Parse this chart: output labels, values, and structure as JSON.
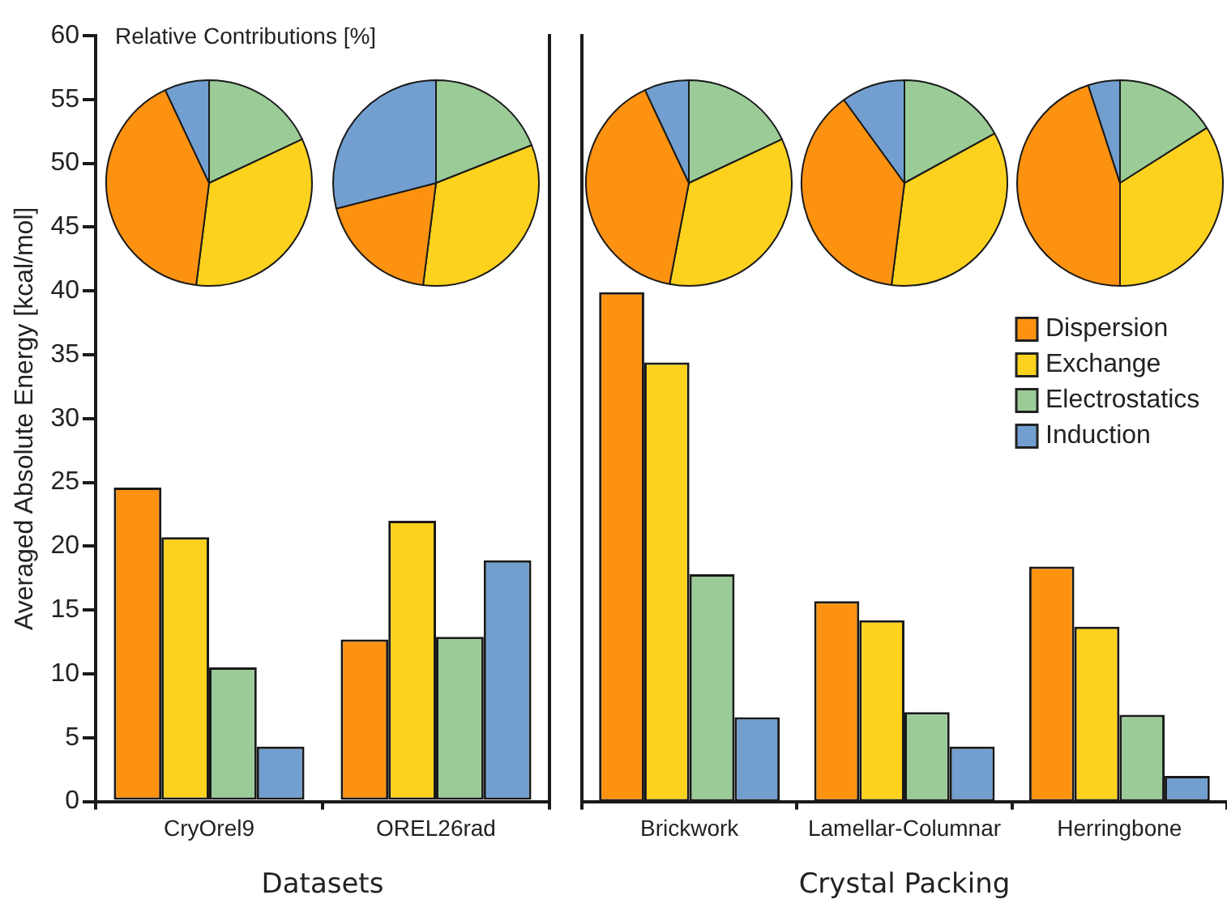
{
  "chart_data": [
    {
      "type": "bar",
      "xlabel": "Datasets",
      "ylabel": "Averaged Absolute Energy [kcal/mol]",
      "categories": [
        "CryOrel9",
        "OREL26rad"
      ],
      "ylim": [
        0,
        60
      ],
      "yticks": [
        0,
        5,
        10,
        15,
        20,
        25,
        30,
        35,
        40,
        45,
        50,
        55,
        60
      ],
      "grid": false,
      "legend": false,
      "annotations": [
        "Relative Contributions [%]"
      ],
      "series": [
        {
          "color": "#fd9210",
          "values": [
            24.6,
            12.7
          ]
        },
        {
          "color": "#fdd21e",
          "values": [
            20.7,
            22.0
          ]
        },
        {
          "color": "#9bcc98",
          "values": [
            10.5,
            12.9
          ]
        },
        {
          "color": "#729fcf",
          "values": [
            4.3,
            18.9
          ]
        }
      ]
    },
    {
      "type": "bar",
      "xlabel": "Crystal Packing",
      "categories": [
        "Brickwork",
        "Lamellar-Columnar",
        "Herringbone"
      ],
      "ylim": [
        0,
        60
      ],
      "yticks": [
        0,
        5,
        10,
        15,
        20,
        25,
        30,
        35,
        40,
        45,
        50,
        55,
        60
      ],
      "tick_labels": "x",
      "grid": false,
      "legend": "right",
      "series": [
        {
          "name": "Dispersion",
          "color": "#fd9210",
          "values": [
            39.9,
            15.7,
            18.4
          ]
        },
        {
          "name": "Exchange",
          "color": "#fdd21e",
          "values": [
            34.4,
            14.2,
            13.7
          ]
        },
        {
          "name": "Electrostatics",
          "color": "#9bcc98",
          "values": [
            17.8,
            7.0,
            6.8
          ]
        },
        {
          "name": "Induction",
          "color": "#729fcf",
          "values": [
            6.6,
            4.3,
            2.0
          ]
        }
      ]
    },
    {
      "type": "pie",
      "categories": [
        null,
        null,
        null,
        null
      ],
      "values": [
        18,
        34,
        41,
        7
      ],
      "colors": [
        "#9bcc98",
        "#fdd21e",
        "#fd9210",
        "#729fcf"
      ]
    },
    {
      "type": "pie",
      "categories": [
        null,
        null,
        null,
        null
      ],
      "values": [
        19,
        33,
        19,
        29
      ],
      "colors": [
        "#9bcc98",
        "#fdd21e",
        "#fd9210",
        "#729fcf"
      ]
    },
    {
      "type": "pie",
      "categories": [
        null,
        null,
        null,
        null
      ],
      "values": [
        18,
        35,
        40,
        7
      ],
      "colors": [
        "#9bcc98",
        "#fdd21e",
        "#fd9210",
        "#729fcf"
      ]
    },
    {
      "type": "pie",
      "categories": [
        null,
        null,
        null,
        null
      ],
      "values": [
        17,
        35,
        38,
        10
      ],
      "colors": [
        "#9bcc98",
        "#fdd21e",
        "#fd9210",
        "#729fcf"
      ]
    },
    {
      "type": "pie",
      "categories": [
        null,
        null,
        null,
        null
      ],
      "values": [
        16,
        34,
        45,
        5
      ],
      "colors": [
        "#9bcc98",
        "#fdd21e",
        "#fd9210",
        "#729fcf"
      ]
    }
  ]
}
